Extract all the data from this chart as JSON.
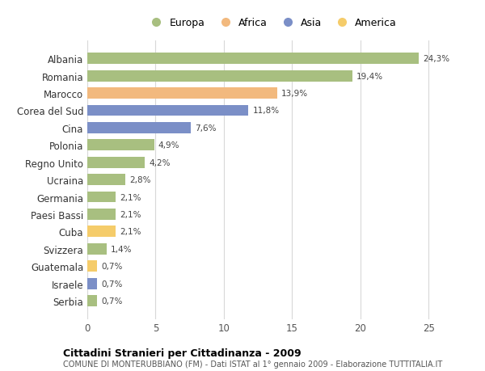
{
  "countries": [
    "Albania",
    "Romania",
    "Marocco",
    "Corea del Sud",
    "Cina",
    "Polonia",
    "Regno Unito",
    "Ucraina",
    "Germania",
    "Paesi Bassi",
    "Cuba",
    "Svizzera",
    "Guatemala",
    "Israele",
    "Serbia"
  ],
  "values": [
    24.3,
    19.4,
    13.9,
    11.8,
    7.6,
    4.9,
    4.2,
    2.8,
    2.1,
    2.1,
    2.1,
    1.4,
    0.7,
    0.7,
    0.7
  ],
  "labels": [
    "24,3%",
    "19,4%",
    "13,9%",
    "11,8%",
    "7,6%",
    "4,9%",
    "4,2%",
    "2,8%",
    "2,1%",
    "2,1%",
    "2,1%",
    "1,4%",
    "0,7%",
    "0,7%",
    "0,7%"
  ],
  "colors": [
    "#a8bf80",
    "#a8bf80",
    "#f2b97e",
    "#7b8fc7",
    "#7b8fc7",
    "#a8bf80",
    "#a8bf80",
    "#a8bf80",
    "#a8bf80",
    "#a8bf80",
    "#f5cc6a",
    "#a8bf80",
    "#f5cc6a",
    "#7b8fc7",
    "#a8bf80"
  ],
  "legend_labels": [
    "Europa",
    "Africa",
    "Asia",
    "America"
  ],
  "legend_colors": [
    "#a8bf80",
    "#f2b97e",
    "#7b8fc7",
    "#f5cc6a"
  ],
  "title": "Cittadini Stranieri per Cittadinanza - 2009",
  "subtitle": "COMUNE DI MONTERUBBIANO (FM) - Dati ISTAT al 1° gennaio 2009 - Elaborazione TUTTITALIA.IT",
  "xlim": [
    0,
    27
  ],
  "xticks": [
    0,
    5,
    10,
    15,
    20,
    25
  ],
  "background_color": "#ffffff",
  "grid_color": "#d8d8d8",
  "bar_height": 0.65
}
